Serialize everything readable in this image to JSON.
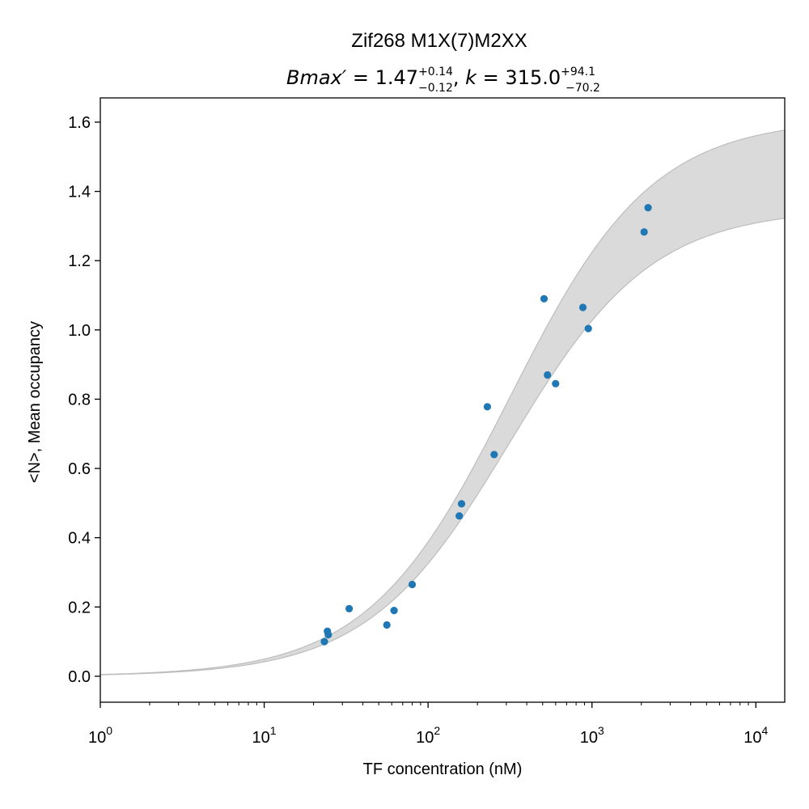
{
  "chart_data": {
    "type": "scatter",
    "title": "Zif268 M1X(7)M2XX",
    "subtitle": {
      "bmax_label": "Bmax′",
      "bmax_value": "1.47",
      "bmax_plus": "+0.14",
      "bmax_minus": "−0.12",
      "k_label": "k",
      "k_value": "315.0",
      "k_plus": "+94.1",
      "k_minus": "−70.2"
    },
    "xlabel": "TF concentration (nM)",
    "ylabel": "<N>, Mean occupancy",
    "xscale": "log",
    "xlim": [
      1,
      15000
    ],
    "ylim": [
      -0.075,
      1.67
    ],
    "x_ticks": [
      {
        "value": 1,
        "base": "10",
        "exp": "0"
      },
      {
        "value": 10,
        "base": "10",
        "exp": "1"
      },
      {
        "value": 100,
        "base": "10",
        "exp": "2"
      },
      {
        "value": 1000,
        "base": "10",
        "exp": "3"
      },
      {
        "value": 10000,
        "base": "10",
        "exp": "4"
      }
    ],
    "y_ticks": [
      {
        "value": 0.0,
        "label": "0.0"
      },
      {
        "value": 0.2,
        "label": "0.2"
      },
      {
        "value": 0.4,
        "label": "0.4"
      },
      {
        "value": 0.6,
        "label": "0.6"
      },
      {
        "value": 0.8,
        "label": "0.8"
      },
      {
        "value": 1.0,
        "label": "1.0"
      },
      {
        "value": 1.2,
        "label": "1.2"
      },
      {
        "value": 1.4,
        "label": "1.4"
      },
      {
        "value": 1.6,
        "label": "1.6"
      }
    ],
    "grid": false,
    "series": [
      {
        "type": "scatter",
        "color": "#1f77b4",
        "points": [
          {
            "x": 23.3,
            "y": 0.1
          },
          {
            "x": 24.3,
            "y": 0.13
          },
          {
            "x": 24.6,
            "y": 0.12
          },
          {
            "x": 33.0,
            "y": 0.195
          },
          {
            "x": 56.0,
            "y": 0.148
          },
          {
            "x": 62.0,
            "y": 0.19
          },
          {
            "x": 80.0,
            "y": 0.265
          },
          {
            "x": 155.0,
            "y": 0.463
          },
          {
            "x": 160.0,
            "y": 0.498
          },
          {
            "x": 230.0,
            "y": 0.778
          },
          {
            "x": 253.0,
            "y": 0.64
          },
          {
            "x": 510.0,
            "y": 1.09
          },
          {
            "x": 535.0,
            "y": 0.87
          },
          {
            "x": 600.0,
            "y": 0.845
          },
          {
            "x": 880.0,
            "y": 1.065
          },
          {
            "x": 950.0,
            "y": 1.004
          },
          {
            "x": 2080.0,
            "y": 1.283
          },
          {
            "x": 2200.0,
            "y": 1.353
          }
        ]
      }
    ],
    "band": {
      "type": "area",
      "color": "#d8d8d8",
      "edge_color": "#bdbdbd",
      "fill_opacity": 0.95,
      "upper": {
        "bmax": 1.61,
        "k": 315.0
      },
      "lower": {
        "bmax": 1.35,
        "k": 315.0
      }
    }
  }
}
